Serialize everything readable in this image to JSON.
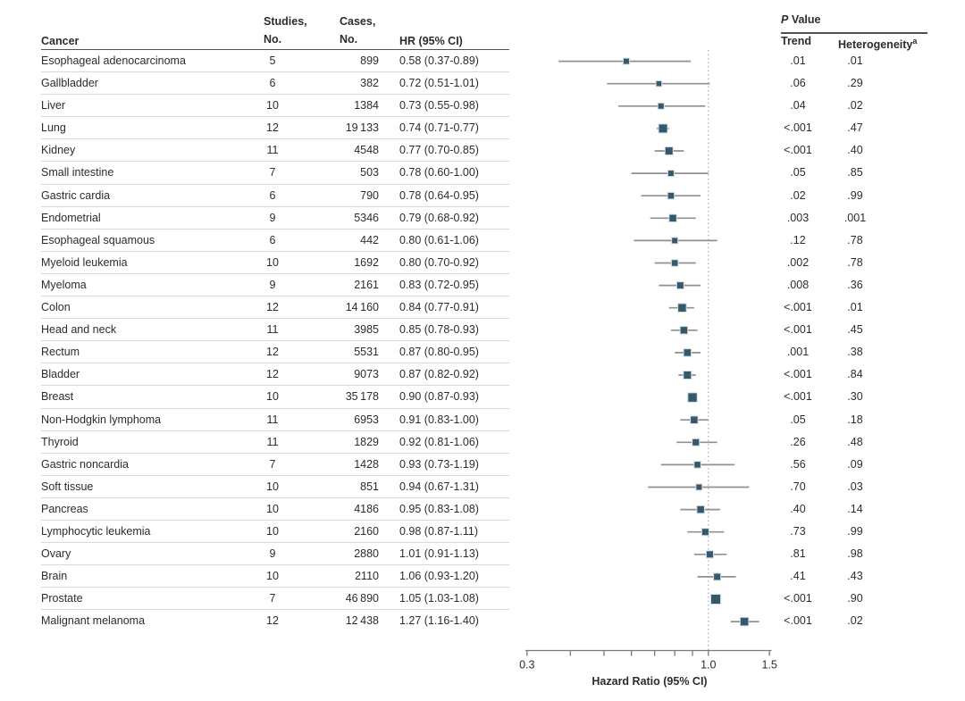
{
  "figure": {
    "columns": {
      "cancer": "Cancer",
      "studies_line1": "Studies,",
      "studies_line2": "No.",
      "cases_line1": "Cases,",
      "cases_line2": "No.",
      "hr": "HR (95% CI)",
      "p_value_italic": "P",
      "p_value_rest": " Value",
      "p_trend": "Trend",
      "p_heterogeneity": "Heterogeneity",
      "heterogeneity_footnote_mark": "a"
    },
    "colors": {
      "marker": "#35596b",
      "marker_edge": "#d3dee4",
      "ci_line": "#909090",
      "reference_line": "#b0b0b0",
      "axis": "#7a7a7a",
      "text": "#2b2c30",
      "header_rule": "#515254",
      "row_separator": "#d9d9d9"
    }
  },
  "chart_data": {
    "type": "forest",
    "title": "",
    "x_axis": {
      "label": "Hazard Ratio (95% CI)",
      "scale": "log10",
      "range": [
        0.3,
        1.5
      ],
      "labeled_ticks": [
        "0.3",
        "1.0",
        "1.5"
      ],
      "labeled_tick_values": [
        0.3,
        1.0,
        1.5
      ],
      "minor_tick_values": [
        0.4,
        0.5,
        0.6,
        0.7,
        0.8,
        0.9
      ],
      "reference_line": 1.0
    },
    "rows": [
      {
        "cancer": "Esophageal adenocarcinoma",
        "studies": "5",
        "cases": "899",
        "hr_label": "0.58 (0.37-0.89)",
        "hr": 0.58,
        "ci_low": 0.37,
        "ci_high": 0.89,
        "p_trend": ".01",
        "p_heterogeneity": ".01",
        "marker_size": 7
      },
      {
        "cancer": "Gallbladder",
        "studies": "6",
        "cases": "382",
        "hr_label": "0.72 (0.51-1.01)",
        "hr": 0.72,
        "ci_low": 0.51,
        "ci_high": 1.01,
        "p_trend": ".06",
        "p_heterogeneity": ".29",
        "marker_size": 6.5
      },
      {
        "cancer": "Liver",
        "studies": "10",
        "cases": "1384",
        "hr_label": "0.73 (0.55-0.98)",
        "hr": 0.73,
        "ci_low": 0.55,
        "ci_high": 0.98,
        "p_trend": ".04",
        "p_heterogeneity": ".02",
        "marker_size": 7
      },
      {
        "cancer": "Lung",
        "studies": "12",
        "cases": "19 133",
        "hr_label": "0.74 (0.71-0.77)",
        "hr": 0.74,
        "ci_low": 0.71,
        "ci_high": 0.77,
        "p_trend": "<.001",
        "p_heterogeneity": ".47",
        "marker_size": 10
      },
      {
        "cancer": "Kidney",
        "studies": "11",
        "cases": "4548",
        "hr_label": "0.77 (0.70-0.85)",
        "hr": 0.77,
        "ci_low": 0.7,
        "ci_high": 0.85,
        "p_trend": "<.001",
        "p_heterogeneity": ".40",
        "marker_size": 9
      },
      {
        "cancer": "Small intestine",
        "studies": "7",
        "cases": "503",
        "hr_label": "0.78 (0.60-1.00)",
        "hr": 0.78,
        "ci_low": 0.6,
        "ci_high": 1.0,
        "p_trend": ".05",
        "p_heterogeneity": ".85",
        "marker_size": 7
      },
      {
        "cancer": "Gastric cardia",
        "studies": "6",
        "cases": "790",
        "hr_label": "0.78 (0.64-0.95)",
        "hr": 0.78,
        "ci_low": 0.64,
        "ci_high": 0.95,
        "p_trend": ".02",
        "p_heterogeneity": ".99",
        "marker_size": 7.5
      },
      {
        "cancer": "Endometrial",
        "studies": "9",
        "cases": "5346",
        "hr_label": "0.79 (0.68-0.92)",
        "hr": 0.79,
        "ci_low": 0.68,
        "ci_high": 0.92,
        "p_trend": ".003",
        "p_heterogeneity": ".001",
        "marker_size": 8.5
      },
      {
        "cancer": "Esophageal squamous",
        "studies": "6",
        "cases": "442",
        "hr_label": "0.80 (0.61-1.06)",
        "hr": 0.8,
        "ci_low": 0.61,
        "ci_high": 1.06,
        "p_trend": ".12",
        "p_heterogeneity": ".78",
        "marker_size": 7
      },
      {
        "cancer": "Myeloid leukemia",
        "studies": "10",
        "cases": "1692",
        "hr_label": "0.80 (0.70-0.92)",
        "hr": 0.8,
        "ci_low": 0.7,
        "ci_high": 0.92,
        "p_trend": ".002",
        "p_heterogeneity": ".78",
        "marker_size": 7.5
      },
      {
        "cancer": "Myeloma",
        "studies": "9",
        "cases": "2161",
        "hr_label": "0.83 (0.72-0.95)",
        "hr": 0.83,
        "ci_low": 0.72,
        "ci_high": 0.95,
        "p_trend": ".008",
        "p_heterogeneity": ".36",
        "marker_size": 8
      },
      {
        "cancer": "Colon",
        "studies": "12",
        "cases": "14 160",
        "hr_label": "0.84 (0.77-0.91)",
        "hr": 0.84,
        "ci_low": 0.77,
        "ci_high": 0.91,
        "p_trend": "<.001",
        "p_heterogeneity": ".01",
        "marker_size": 9.5
      },
      {
        "cancer": "Head and neck",
        "studies": "11",
        "cases": "3985",
        "hr_label": "0.85 (0.78-0.93)",
        "hr": 0.85,
        "ci_low": 0.78,
        "ci_high": 0.93,
        "p_trend": "<.001",
        "p_heterogeneity": ".45",
        "marker_size": 8.5
      },
      {
        "cancer": "Rectum",
        "studies": "12",
        "cases": "5531",
        "hr_label": "0.87 (0.80-0.95)",
        "hr": 0.87,
        "ci_low": 0.8,
        "ci_high": 0.95,
        "p_trend": ".001",
        "p_heterogeneity": ".38",
        "marker_size": 8.5
      },
      {
        "cancer": "Bladder",
        "studies": "12",
        "cases": "9073",
        "hr_label": "0.87 (0.82-0.92)",
        "hr": 0.87,
        "ci_low": 0.82,
        "ci_high": 0.92,
        "p_trend": "<.001",
        "p_heterogeneity": ".84",
        "marker_size": 9
      },
      {
        "cancer": "Breast",
        "studies": "10",
        "cases": "35 178",
        "hr_label": "0.90 (0.87-0.93)",
        "hr": 0.9,
        "ci_low": 0.87,
        "ci_high": 0.93,
        "p_trend": "<.001",
        "p_heterogeneity": ".30",
        "marker_size": 10.5
      },
      {
        "cancer": "Non-Hodgkin lymphoma",
        "studies": "11",
        "cases": "6953",
        "hr_label": "0.91 (0.83-1.00)",
        "hr": 0.91,
        "ci_low": 0.83,
        "ci_high": 1.0,
        "p_trend": ".05",
        "p_heterogeneity": ".18",
        "marker_size": 8.5
      },
      {
        "cancer": "Thyroid",
        "studies": "11",
        "cases": "1829",
        "hr_label": "0.92 (0.81-1.06)",
        "hr": 0.92,
        "ci_low": 0.81,
        "ci_high": 1.06,
        "p_trend": ".26",
        "p_heterogeneity": ".48",
        "marker_size": 8
      },
      {
        "cancer": "Gastric noncardia",
        "studies": "7",
        "cases": "1428",
        "hr_label": "0.93 (0.73-1.19)",
        "hr": 0.93,
        "ci_low": 0.73,
        "ci_high": 1.19,
        "p_trend": ".56",
        "p_heterogeneity": ".09",
        "marker_size": 7.5
      },
      {
        "cancer": "Soft tissue",
        "studies": "10",
        "cases": "851",
        "hr_label": "0.94 (0.67-1.31)",
        "hr": 0.94,
        "ci_low": 0.67,
        "ci_high": 1.31,
        "p_trend": ".70",
        "p_heterogeneity": ".03",
        "marker_size": 7
      },
      {
        "cancer": "Pancreas",
        "studies": "10",
        "cases": "4186",
        "hr_label": "0.95 (0.83-1.08)",
        "hr": 0.95,
        "ci_low": 0.83,
        "ci_high": 1.08,
        "p_trend": ".40",
        "p_heterogeneity": ".14",
        "marker_size": 8.5
      },
      {
        "cancer": "Lymphocytic leukemia",
        "studies": "10",
        "cases": "2160",
        "hr_label": "0.98 (0.87-1.11)",
        "hr": 0.98,
        "ci_low": 0.87,
        "ci_high": 1.11,
        "p_trend": ".73",
        "p_heterogeneity": ".99",
        "marker_size": 8
      },
      {
        "cancer": "Ovary",
        "studies": "9",
        "cases": "2880",
        "hr_label": "1.01 (0.91-1.13)",
        "hr": 1.01,
        "ci_low": 0.91,
        "ci_high": 1.13,
        "p_trend": ".81",
        "p_heterogeneity": ".98",
        "marker_size": 8
      },
      {
        "cancer": "Brain",
        "studies": "10",
        "cases": "2110",
        "hr_label": "1.06 (0.93-1.20)",
        "hr": 1.06,
        "ci_low": 0.93,
        "ci_high": 1.2,
        "p_trend": ".41",
        "p_heterogeneity": ".43",
        "marker_size": 8
      },
      {
        "cancer": "Prostate",
        "studies": "7",
        "cases": "46 890",
        "hr_label": "1.05 (1.03-1.08)",
        "hr": 1.05,
        "ci_low": 1.03,
        "ci_high": 1.08,
        "p_trend": "<.001",
        "p_heterogeneity": ".90",
        "marker_size": 11
      },
      {
        "cancer": "Malignant melanoma",
        "studies": "12",
        "cases": "12 438",
        "hr_label": "1.27 (1.16-1.40)",
        "hr": 1.27,
        "ci_low": 1.16,
        "ci_high": 1.4,
        "p_trend": "<.001",
        "p_heterogeneity": ".02",
        "marker_size": 9.5
      }
    ]
  }
}
